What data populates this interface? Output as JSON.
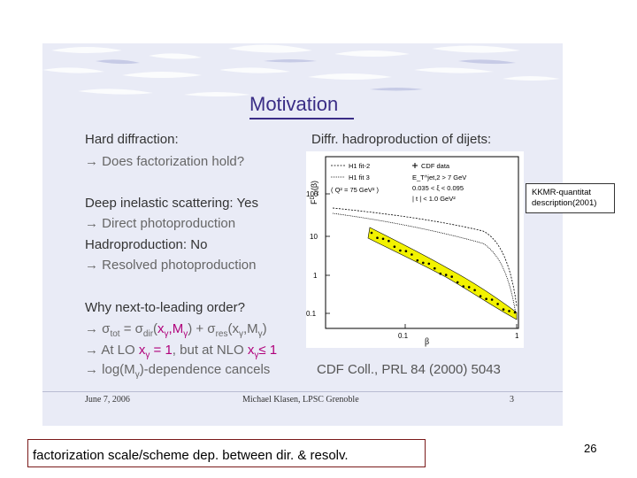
{
  "slide": {
    "title": "Motivation",
    "left_column": {
      "hard_diffraction": "Hard diffraction:",
      "factorization_question": "→ Does factorization hold?",
      "dis": "Deep inelastic scattering: Yes",
      "direct_photoproduction": "→ Direct photoproduction",
      "hadroproduction": "Hadroproduction: No",
      "resolved_photoproduction": "→ Resolved photoproduction",
      "why_nlo": "Why next-to-leading order?",
      "sigma_tot_prefix": "→ σ",
      "sigma_tot_sub": "tot",
      "sigma_tot_eq": " = σ",
      "sigma_dir_sub": "dir",
      "sigma_dir_args_open": "(",
      "sigma_dir_args": "x",
      "sigma_dir_args_sub": "γ",
      "sigma_dir_args_mid": ",M",
      "sigma_dir_args_sub2": "γ",
      "sigma_dir_args_close": ") + σ",
      "sigma_res_sub": "res",
      "sigma_res_args": "(x",
      "sigma_res_args_sub": "γ",
      "sigma_res_args_mid": ",M",
      "sigma_res_args_sub2": "γ",
      "sigma_res_args_close": ")",
      "lo_prefix": "→ At LO ",
      "lo_hl": "x",
      "lo_hl_sub": "γ",
      "lo_hl_eq": " = 1",
      "lo_mid": ", but at NLO ",
      "nlo_hl": "x",
      "nlo_hl_sub": "γ",
      "nlo_hl_eq": "≤ 1",
      "log_prefix": "→ log(M",
      "log_sub": "γ",
      "log_suffix": ")-dependence cancels"
    },
    "right_column": {
      "heading": "Diffr. hadroproduction of dijets:",
      "reference": "CDF Coll., PRL 84 (2000) 5043"
    },
    "footer": {
      "date": "June 7, 2006",
      "author": "Michael Klasen, LPSC Grenoble",
      "page": "3"
    }
  },
  "plot": {
    "ylabel": "F",
    "ylabel_sup": "D",
    "ylabel_sub": "JJ",
    "ylabel_arg": "(β)",
    "legend": {
      "h1_fit2": "H1 fit-2",
      "h1_fit3": "H1 fit 3",
      "q2": "( Q² = 75 GeV² )",
      "cdf_data": "CDF data",
      "et_cut": "E_T^jet,2 > 7 GeV",
      "xi_cut": "0.035 < ξ < 0.095",
      "t_cut": "| t | < 1.0 GeV²"
    },
    "yticks": [
      "100",
      "10",
      "1",
      "0.1"
    ],
    "xticks": [
      "0.1",
      "1"
    ],
    "xlabel": "β",
    "colors": {
      "band": "#f2f200",
      "data": "#000000"
    }
  },
  "note": "KKMR-quantitat description(2001)",
  "caption": "factorization scale/scheme dep. between dir. & resolv.",
  "page_number": "26"
}
